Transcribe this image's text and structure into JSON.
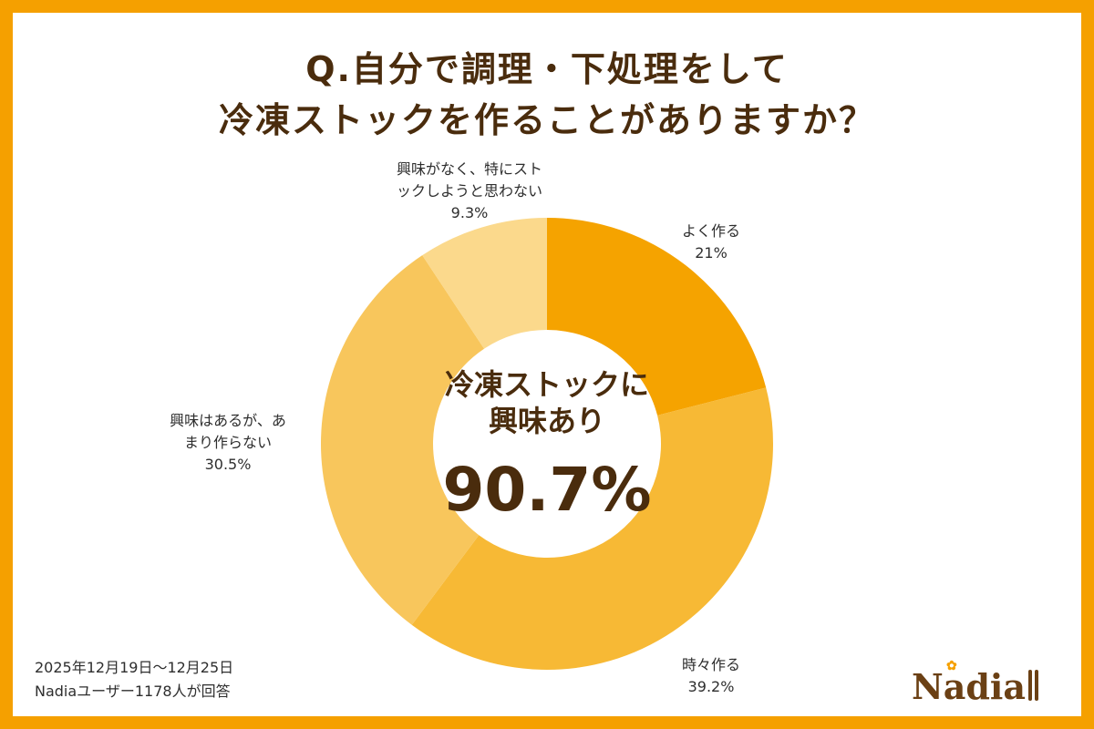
{
  "title": {
    "line1": "Q.自分で調理・下処理をして",
    "line2": "冷凍ストックを作ることがありますか？"
  },
  "chart_data": {
    "type": "pie",
    "style": "donut",
    "start_angle_deg": 0,
    "direction": "clockwise",
    "slices": [
      {
        "label_lines": [
          "よく作る"
        ],
        "value_text": "21%",
        "value": 21,
        "color": "#f5a300"
      },
      {
        "label_lines": [
          "時々作る"
        ],
        "value_text": "39.2%",
        "value": 39.2,
        "color": "#f7b935"
      },
      {
        "label_lines": [
          "興味はあるが、あ",
          "まり作らない"
        ],
        "value_text": "30.5%",
        "value": 30.5,
        "color": "#f8c65c"
      },
      {
        "label_lines": [
          "興味がなく、特にスト",
          "ックしようと思わない"
        ],
        "value_text": "9.3%",
        "value": 9.3,
        "color": "#fbd98c"
      }
    ],
    "center_text": {
      "line1": "冷凍ストックに",
      "line2": "興味あり",
      "value": "90.7%"
    }
  },
  "footer": {
    "period": "2025年12月19日〜12月25日",
    "respondents": "Nadiaユーザー1178人が回答"
  },
  "brand": {
    "logo_text": "Nadia",
    "accent": "#f5a000",
    "text_color": "#4a2c0d"
  }
}
